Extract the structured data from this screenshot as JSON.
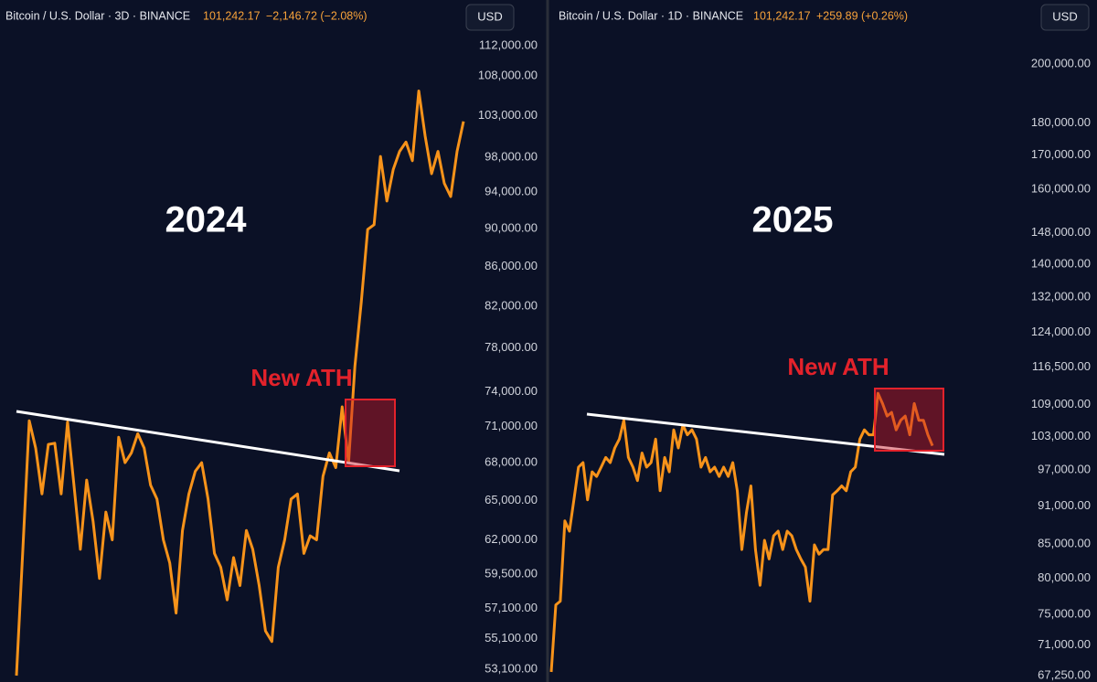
{
  "chart_data": [
    {
      "type": "line",
      "title": "Bitcoin / U.S. Dollar · 3D · BINANCE",
      "price": "101,242.17",
      "change": "−2,146.72 (−2.08%)",
      "currency": "USD",
      "annotations": [
        "2024",
        "New ATH"
      ],
      "log_scale": true,
      "color": "#f7931a",
      "ylim": [
        52300,
        118300
      ],
      "yticks": [
        {
          "value": 112000,
          "label": "112,000.00"
        },
        {
          "value": 108000,
          "label": "108,000.00"
        },
        {
          "value": 103000,
          "label": "103,000.00"
        },
        {
          "value": 98000,
          "label": "98,000.00"
        },
        {
          "value": 94000,
          "label": "94,000.00"
        },
        {
          "value": 90000,
          "label": "90,000.00"
        },
        {
          "value": 86000,
          "label": "86,000.00"
        },
        {
          "value": 82000,
          "label": "82,000.00"
        },
        {
          "value": 78000,
          "label": "78,000.00"
        },
        {
          "value": 74000,
          "label": "74,000.00"
        },
        {
          "value": 71000,
          "label": "71,000.00"
        },
        {
          "value": 68000,
          "label": "68,000.00"
        },
        {
          "value": 65000,
          "label": "65,000.00"
        },
        {
          "value": 62000,
          "label": "62,000.00"
        },
        {
          "value": 59500,
          "label": "59,500.00"
        },
        {
          "value": 57100,
          "label": "57,100.00"
        },
        {
          "value": 55100,
          "label": "55,100.00"
        },
        {
          "value": 53100,
          "label": "53,100.00"
        }
      ],
      "values": [
        52700,
        61300,
        71500,
        69200,
        65500,
        69500,
        69600,
        65500,
        71400,
        66200,
        61300,
        66600,
        63400,
        59200,
        64100,
        62000,
        70100,
        68000,
        68800,
        70400,
        69200,
        66200,
        65100,
        62000,
        60300,
        56800,
        62700,
        65500,
        67300,
        68000,
        65100,
        61000,
        60000,
        57700,
        60700,
        58700,
        62700,
        61300,
        58700,
        55600,
        54900,
        60000,
        62000,
        65100,
        65500,
        61000,
        62300,
        62000,
        66900,
        68800,
        67600,
        72700,
        68000,
        76300,
        82400,
        89900,
        90400,
        98100,
        93000,
        96600,
        98700,
        99800,
        97600,
        106100,
        100500,
        96100,
        98700,
        95000,
        93500,
        98700,
        102300
      ]
    },
    {
      "type": "line",
      "title": "Bitcoin / U.S. Dollar · 1D · BINANCE",
      "price": "101,242.17",
      "change": "+259.89 (+0.26%)",
      "currency": "USD",
      "annotations": [
        "2025",
        "New ATH"
      ],
      "log_scale": true,
      "color": "#f7931a",
      "ylim": [
        66500,
        224100
      ],
      "yticks": [
        {
          "value": 200000,
          "label": "200,000.00"
        },
        {
          "value": 180000,
          "label": "180,000.00"
        },
        {
          "value": 170000,
          "label": "170,000.00"
        },
        {
          "value": 160000,
          "label": "160,000.00"
        },
        {
          "value": 148000,
          "label": "148,000.00"
        },
        {
          "value": 140000,
          "label": "140,000.00"
        },
        {
          "value": 132000,
          "label": "132,000.00"
        },
        {
          "value": 124000,
          "label": "124,000.00"
        },
        {
          "value": 116500,
          "label": "116,500.00"
        },
        {
          "value": 109000,
          "label": "109,000.00"
        },
        {
          "value": 103000,
          "label": "103,000.00"
        },
        {
          "value": 97000,
          "label": "97,000.00"
        },
        {
          "value": 91000,
          "label": "91,000.00"
        },
        {
          "value": 85000,
          "label": "85,000.00"
        },
        {
          "value": 80000,
          "label": "80,000.00"
        },
        {
          "value": 75000,
          "label": "75,000.00"
        },
        {
          "value": 71000,
          "label": "71,000.00"
        },
        {
          "value": 67250,
          "label": "67,250.00"
        }
      ],
      "values": [
        67700,
        76300,
        76800,
        88600,
        87000,
        92000,
        97500,
        98300,
        92000,
        96700,
        95900,
        97500,
        99200,
        98300,
        100900,
        102500,
        106000,
        99200,
        97500,
        95200,
        100000,
        97500,
        98300,
        102500,
        93500,
        99200,
        96700,
        104200,
        100900,
        105100,
        103300,
        104200,
        102500,
        97500,
        99200,
        96700,
        97500,
        95900,
        97500,
        95900,
        98300,
        93500,
        84200,
        89900,
        94300,
        84200,
        79000,
        85600,
        82800,
        86300,
        87000,
        84200,
        87000,
        86300,
        84200,
        82800,
        81600,
        76800,
        84900,
        83500,
        84200,
        84200,
        92800,
        93500,
        94300,
        93500,
        96700,
        97500,
        102500,
        104200,
        103300,
        103300,
        111200,
        109200,
        106800,
        107500,
        104200,
        106000,
        106800,
        103300,
        109200,
        106000,
        106000,
        103300,
        101300
      ]
    }
  ]
}
